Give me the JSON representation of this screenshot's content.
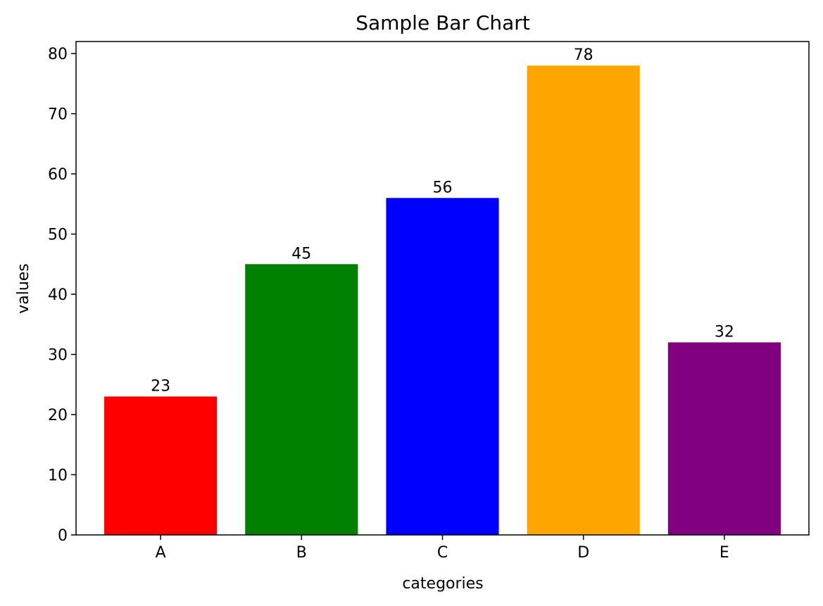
{
  "chart_data": {
    "type": "bar",
    "title": "Sample Bar Chart",
    "xlabel": "categories",
    "ylabel": "values",
    "categories": [
      "A",
      "B",
      "C",
      "D",
      "E"
    ],
    "values": [
      23,
      45,
      56,
      78,
      32
    ],
    "colors": [
      "#ff0000",
      "#008000",
      "#0000ff",
      "#ffa500",
      "#800080"
    ],
    "data_labels": [
      "23",
      "45",
      "56",
      "78",
      "32"
    ],
    "yticks": [
      0,
      10,
      20,
      30,
      40,
      50,
      60,
      70,
      80
    ],
    "ylim": [
      0,
      82
    ],
    "grid": false,
    "legend": "none"
  }
}
